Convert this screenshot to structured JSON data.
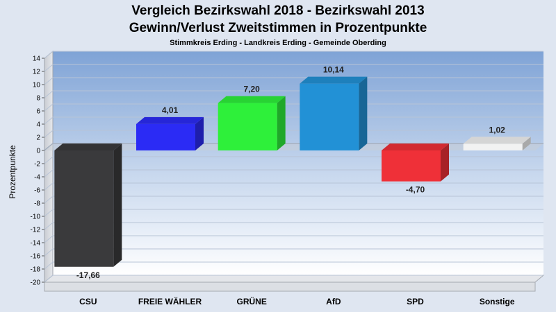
{
  "chart_data": {
    "type": "bar",
    "title": "Vergleich Bezirkswahl 2018 - Bezirkswahl 2013",
    "subtitle": "Gewinn/Verlust Zweitstimmen in Prozentpunkte",
    "caption": "Stimmkreis Erding - Landkreis Erding - Gemeinde Oberding",
    "ylabel": "Prozentpunkte",
    "xlabel": "",
    "ylim": [
      -20,
      14
    ],
    "yticks": [
      14,
      12,
      10,
      8,
      6,
      4,
      2,
      0,
      -2,
      -4,
      -6,
      -8,
      -10,
      -12,
      -14,
      -16,
      -18,
      -20
    ],
    "ytick_labels": [
      "14",
      "12",
      "10",
      "8",
      "6",
      "4",
      "2",
      "0",
      "-2",
      "-4",
      "-6",
      "-8",
      "-10",
      "-12",
      "-14",
      "-16",
      "-18",
      "-20"
    ],
    "grid": true,
    "categories": [
      "CSU",
      "FREIE WÄHLER",
      "GRÜNE",
      "AfD",
      "SPD",
      "Sonstige"
    ],
    "values": [
      -17.66,
      4.01,
      7.2,
      10.14,
      -4.7,
      1.02
    ],
    "value_labels": [
      "-17,66",
      "4,01",
      "7,20",
      "10,14",
      "-4,70",
      "1,02"
    ],
    "colors": [
      "#3a3a3c",
      "#2b2bf5",
      "#2ef03a",
      "#2291d6",
      "#ef3038",
      "#f2f2f2"
    ],
    "background_color": "#dfe6f1"
  }
}
